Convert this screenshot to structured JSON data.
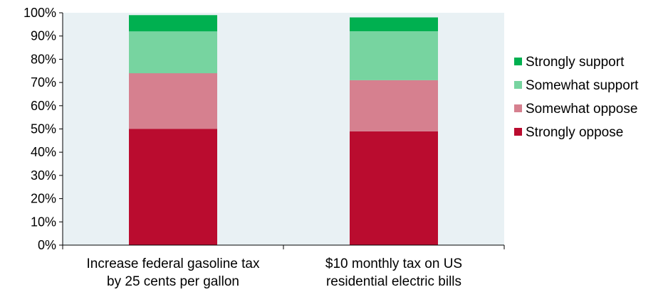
{
  "chart_data": {
    "type": "bar",
    "stacked": true,
    "categories": [
      [
        "Increase federal gasoline tax",
        "by 25 cents per gallon"
      ],
      [
        "$10 monthly tax on US",
        "residential electric bills"
      ]
    ],
    "series": [
      {
        "name": "Strongly oppose",
        "values": [
          50,
          49
        ],
        "color": "#BA0C2F"
      },
      {
        "name": "Somewhat oppose",
        "values": [
          24,
          22
        ],
        "color": "#D6808F"
      },
      {
        "name": "Somewhat support",
        "values": [
          18,
          21
        ],
        "color": "#77D4A0"
      },
      {
        "name": "Strongly support",
        "values": [
          7,
          6
        ],
        "color": "#00B050"
      }
    ],
    "ylim": [
      0,
      100
    ],
    "yticks": [
      "0%",
      "10%",
      "20%",
      "30%",
      "40%",
      "50%",
      "60%",
      "70%",
      "80%",
      "90%",
      "100%"
    ],
    "plot_background": "#E9F1F4",
    "legend_position": "right",
    "legend_order": [
      "Strongly support",
      "Somewhat support",
      "Somewhat oppose",
      "Strongly oppose"
    ]
  }
}
